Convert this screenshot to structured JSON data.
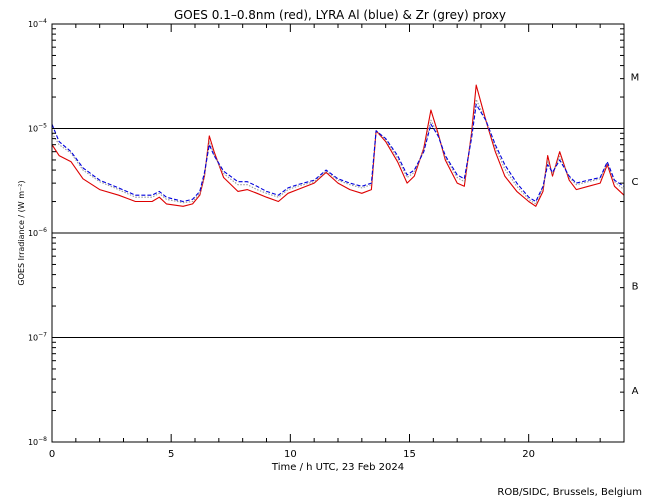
{
  "chart_data": {
    "type": "line",
    "title": "GOES 0.1–0.8nm (red), LYRA Al (blue) & Zr (grey) proxy",
    "xlabel": "Time / h UTC, 23 Feb 2024",
    "ylabel": "GOES Irradiance / (W m⁻²)",
    "xlim": [
      0,
      24
    ],
    "ylim": [
      1e-08,
      0.0001
    ],
    "yscale": "log",
    "x_ticks": [
      0,
      5,
      10,
      15,
      20
    ],
    "y_ticks": [
      {
        "base": "10",
        "exp": "−8",
        "value": 1e-08
      },
      {
        "base": "10",
        "exp": "−7",
        "value": 1e-07
      },
      {
        "base": "10",
        "exp": "−6",
        "value": 1e-06
      },
      {
        "base": "10",
        "exp": "−5",
        "value": 1e-05
      },
      {
        "base": "10",
        "exp": "−4",
        "value": 0.0001
      }
    ],
    "class_lines": [
      1e-07,
      1e-06,
      1e-05
    ],
    "class_labels": [
      {
        "label": "A",
        "value": 3.16e-08
      },
      {
        "label": "B",
        "value": 3.16e-07
      },
      {
        "label": "C",
        "value": 3.16e-06
      },
      {
        "label": "M",
        "value": 3.16e-05
      }
    ],
    "series": [
      {
        "name": "GOES 0.1-0.8nm",
        "color": "#dd0000",
        "style": "solid",
        "points": [
          [
            0,
            7e-06
          ],
          [
            0.3,
            5.5e-06
          ],
          [
            0.8,
            4.8e-06
          ],
          [
            1.3,
            3.3e-06
          ],
          [
            2,
            2.6e-06
          ],
          [
            2.8,
            2.3e-06
          ],
          [
            3.5,
            2e-06
          ],
          [
            4.2,
            2e-06
          ],
          [
            4.5,
            2.2e-06
          ],
          [
            4.8,
            1.9e-06
          ],
          [
            5.5,
            1.8e-06
          ],
          [
            5.9,
            1.9e-06
          ],
          [
            6.2,
            2.3e-06
          ],
          [
            6.4,
            3.5e-06
          ],
          [
            6.6,
            8.5e-06
          ],
          [
            6.8,
            6e-06
          ],
          [
            7.2,
            3.4e-06
          ],
          [
            7.8,
            2.5e-06
          ],
          [
            8.2,
            2.6e-06
          ],
          [
            8.6,
            2.4e-06
          ],
          [
            9,
            2.2e-06
          ],
          [
            9.5,
            2e-06
          ],
          [
            9.9,
            2.4e-06
          ],
          [
            10.3,
            2.6e-06
          ],
          [
            11,
            3e-06
          ],
          [
            11.5,
            3.8e-06
          ],
          [
            12,
            3e-06
          ],
          [
            12.5,
            2.6e-06
          ],
          [
            13,
            2.4e-06
          ],
          [
            13.4,
            2.6e-06
          ],
          [
            13.6,
            9.5e-06
          ],
          [
            14,
            7.5e-06
          ],
          [
            14.5,
            4.8e-06
          ],
          [
            14.9,
            3e-06
          ],
          [
            15.2,
            3.5e-06
          ],
          [
            15.6,
            6.5e-06
          ],
          [
            15.9,
            1.5e-05
          ],
          [
            16.2,
            9e-06
          ],
          [
            16.5,
            5e-06
          ],
          [
            17,
            3e-06
          ],
          [
            17.3,
            2.8e-06
          ],
          [
            17.6,
            9e-06
          ],
          [
            17.8,
            2.6e-05
          ],
          [
            18.2,
            1.2e-05
          ],
          [
            18.6,
            6e-06
          ],
          [
            19,
            3.5e-06
          ],
          [
            19.5,
            2.5e-06
          ],
          [
            20,
            2e-06
          ],
          [
            20.3,
            1.8e-06
          ],
          [
            20.6,
            2.5e-06
          ],
          [
            20.8,
            5.5e-06
          ],
          [
            21,
            3.5e-06
          ],
          [
            21.3,
            6e-06
          ],
          [
            21.7,
            3.2e-06
          ],
          [
            22,
            2.6e-06
          ],
          [
            22.5,
            2.8e-06
          ],
          [
            23,
            3e-06
          ],
          [
            23.3,
            4.5e-06
          ],
          [
            23.6,
            2.8e-06
          ],
          [
            24,
            2.3e-06
          ]
        ]
      },
      {
        "name": "LYRA Al proxy",
        "color": "#0000dd",
        "style": "dashed",
        "points": [
          [
            0,
            1.1e-05
          ],
          [
            0.3,
            7.5e-06
          ],
          [
            0.8,
            6e-06
          ],
          [
            1.3,
            4.2e-06
          ],
          [
            2,
            3.2e-06
          ],
          [
            2.8,
            2.7e-06
          ],
          [
            3.5,
            2.3e-06
          ],
          [
            4.2,
            2.3e-06
          ],
          [
            4.5,
            2.5e-06
          ],
          [
            4.8,
            2.2e-06
          ],
          [
            5.5,
            2e-06
          ],
          [
            5.9,
            2.1e-06
          ],
          [
            6.2,
            2.5e-06
          ],
          [
            6.4,
            3.8e-06
          ],
          [
            6.6,
            7e-06
          ],
          [
            6.8,
            5.5e-06
          ],
          [
            7.2,
            3.9e-06
          ],
          [
            7.8,
            3.1e-06
          ],
          [
            8.2,
            3.1e-06
          ],
          [
            8.6,
            2.8e-06
          ],
          [
            9,
            2.5e-06
          ],
          [
            9.5,
            2.3e-06
          ],
          [
            9.9,
            2.7e-06
          ],
          [
            10.3,
            2.9e-06
          ],
          [
            11,
            3.2e-06
          ],
          [
            11.5,
            4e-06
          ],
          [
            12,
            3.3e-06
          ],
          [
            12.5,
            3e-06
          ],
          [
            13,
            2.8e-06
          ],
          [
            13.4,
            3e-06
          ],
          [
            13.6,
            9.5e-06
          ],
          [
            14,
            8e-06
          ],
          [
            14.5,
            5.5e-06
          ],
          [
            14.9,
            3.6e-06
          ],
          [
            15.2,
            4e-06
          ],
          [
            15.6,
            6e-06
          ],
          [
            15.9,
            1.1e-05
          ],
          [
            16.2,
            8.5e-06
          ],
          [
            16.5,
            5.5e-06
          ],
          [
            17,
            3.6e-06
          ],
          [
            17.3,
            3.3e-06
          ],
          [
            17.6,
            8e-06
          ],
          [
            17.8,
            1.7e-05
          ],
          [
            18.2,
            1.2e-05
          ],
          [
            18.6,
            7e-06
          ],
          [
            19,
            4.5e-06
          ],
          [
            19.5,
            3e-06
          ],
          [
            20,
            2.2e-06
          ],
          [
            20.3,
            2e-06
          ],
          [
            20.6,
            2.8e-06
          ],
          [
            20.8,
            4.5e-06
          ],
          [
            21,
            3.8e-06
          ],
          [
            21.3,
            5e-06
          ],
          [
            21.7,
            3.5e-06
          ],
          [
            22,
            3e-06
          ],
          [
            22.5,
            3.2e-06
          ],
          [
            23,
            3.4e-06
          ],
          [
            23.3,
            4.8e-06
          ],
          [
            23.6,
            3.2e-06
          ],
          [
            24,
            2.8e-06
          ]
        ]
      },
      {
        "name": "LYRA Zr proxy",
        "color": "#999999",
        "style": "dotted",
        "points": [
          [
            0,
            9e-06
          ],
          [
            0.3,
            7e-06
          ],
          [
            0.8,
            5.8e-06
          ],
          [
            1.3,
            4e-06
          ],
          [
            2,
            3.1e-06
          ],
          [
            2.8,
            2.6e-06
          ],
          [
            3.5,
            2.2e-06
          ],
          [
            4.2,
            2.2e-06
          ],
          [
            4.5,
            2.4e-06
          ],
          [
            4.8,
            2.1e-06
          ],
          [
            5.5,
            1.95e-06
          ],
          [
            5.9,
            2e-06
          ],
          [
            6.2,
            2.4e-06
          ],
          [
            6.4,
            3.6e-06
          ],
          [
            6.6,
            7.5e-06
          ],
          [
            6.8,
            5.6e-06
          ],
          [
            7.2,
            3.7e-06
          ],
          [
            7.8,
            2.9e-06
          ],
          [
            8.2,
            2.9e-06
          ],
          [
            8.6,
            2.6e-06
          ],
          [
            9,
            2.4e-06
          ],
          [
            9.5,
            2.2e-06
          ],
          [
            9.9,
            2.6e-06
          ],
          [
            10.3,
            2.8e-06
          ],
          [
            11,
            3.1e-06
          ],
          [
            11.5,
            3.9e-06
          ],
          [
            12,
            3.2e-06
          ],
          [
            12.5,
            2.9e-06
          ],
          [
            13,
            2.7e-06
          ],
          [
            13.4,
            2.9e-06
          ],
          [
            13.6,
            9.6e-06
          ],
          [
            14,
            7.8e-06
          ],
          [
            14.5,
            5.2e-06
          ],
          [
            14.9,
            3.4e-06
          ],
          [
            15.2,
            3.8e-06
          ],
          [
            15.6,
            6.2e-06
          ],
          [
            15.9,
            1.2e-05
          ],
          [
            16.2,
            8.7e-06
          ],
          [
            16.5,
            5.3e-06
          ],
          [
            17,
            3.4e-06
          ],
          [
            17.3,
            3.1e-06
          ],
          [
            17.6,
            8.5e-06
          ],
          [
            17.8,
            1.9e-05
          ],
          [
            18.2,
            1.2e-05
          ],
          [
            18.6,
            6.6e-06
          ],
          [
            19,
            4.1e-06
          ],
          [
            19.5,
            2.8e-06
          ],
          [
            20,
            2.1e-06
          ],
          [
            20.3,
            1.9e-06
          ],
          [
            20.6,
            2.7e-06
          ],
          [
            20.8,
            4.9e-06
          ],
          [
            21,
            3.7e-06
          ],
          [
            21.3,
            5.4e-06
          ],
          [
            21.7,
            3.4e-06
          ],
          [
            22,
            2.9e-06
          ],
          [
            22.5,
            3.1e-06
          ],
          [
            23,
            3.3e-06
          ],
          [
            23.3,
            4.7e-06
          ],
          [
            23.6,
            3.1e-06
          ],
          [
            24,
            2.6e-06
          ]
        ]
      }
    ],
    "credit": "ROB/SIDC, Brussels, Belgium"
  }
}
